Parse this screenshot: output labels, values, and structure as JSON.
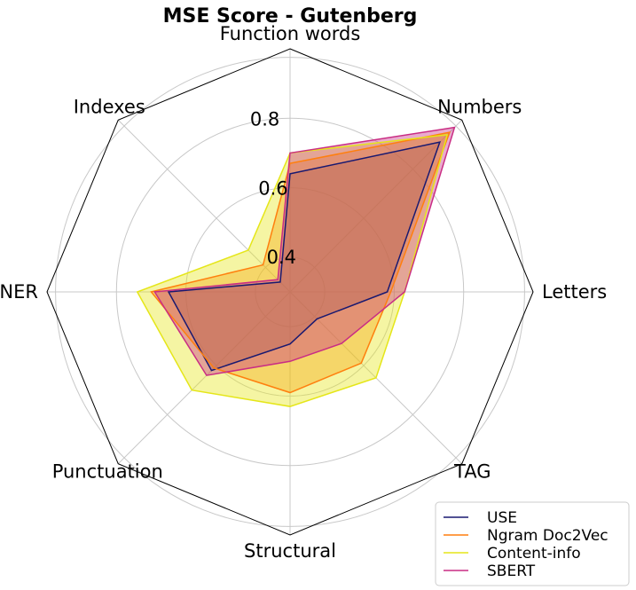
{
  "chart_data": {
    "type": "radar",
    "title": "MSE Score - Gutenberg",
    "axes": [
      "Function words",
      "Numbers",
      "Letters",
      "TAG",
      "Structural",
      "Punctuation",
      "NER",
      "Indexes"
    ],
    "radial_range": [
      0.3,
      1.0
    ],
    "radial_ticks": [
      {
        "value": 0.4,
        "label": "0.4"
      },
      {
        "value": 0.6,
        "label": "0.6"
      },
      {
        "value": 0.8,
        "label": "0.8"
      }
    ],
    "grid": true,
    "legend_position": "bottom-right",
    "series": [
      {
        "name": "USE",
        "color": "#191970",
        "values": [
          0.64,
          0.91,
          0.58,
          0.41,
          0.45,
          0.62,
          0.65,
          0.34
        ]
      },
      {
        "name": "Ngram Doc2Vec",
        "color": "#ff7f0e",
        "values": [
          0.67,
          0.95,
          0.59,
          0.59,
          0.59,
          0.61,
          0.7,
          0.41
        ]
      },
      {
        "name": "Content-info",
        "color": "#e5e619",
        "values": [
          0.7,
          0.94,
          0.63,
          0.65,
          0.63,
          0.7,
          0.74,
          0.47
        ]
      },
      {
        "name": "SBERT",
        "color": "#c92d84",
        "values": [
          0.7,
          0.97,
          0.63,
          0.51,
          0.5,
          0.64,
          0.69,
          0.35
        ]
      }
    ]
  }
}
